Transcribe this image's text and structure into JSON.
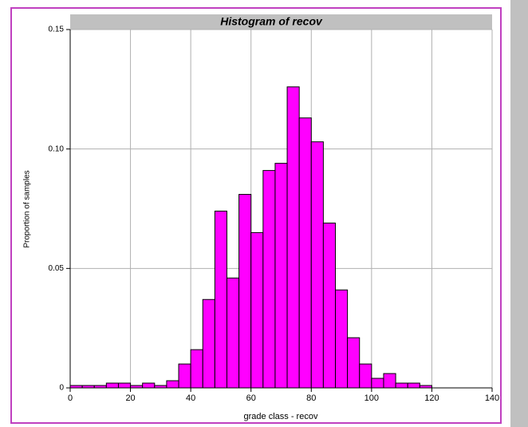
{
  "chart_data": {
    "type": "histogram",
    "title": "Histogram of recov",
    "xlabel": "grade class - recov",
    "ylabel": "Proportion of samples",
    "bins": [
      0,
      4,
      8,
      12,
      16,
      20,
      24,
      28,
      32,
      36,
      40,
      44,
      48,
      52,
      56,
      60,
      64,
      68,
      72,
      76,
      80,
      84,
      88,
      92,
      96,
      100,
      104,
      108,
      112,
      116,
      120
    ],
    "counts": [
      0.001,
      0.001,
      0.001,
      0.002,
      0.002,
      0.001,
      0.002,
      0.001,
      0.003,
      0.01,
      0.016,
      0.037,
      0.074,
      0.046,
      0.081,
      0.065,
      0.091,
      0.094,
      0.126,
      0.113,
      0.103,
      0.069,
      0.041,
      0.021,
      0.01,
      0.004,
      0.006,
      0.002,
      0.002,
      0.001
    ],
    "color": "#ff00ff",
    "xlim": [
      0,
      140
    ],
    "xticks": [
      0,
      20,
      40,
      60,
      80,
      100,
      120,
      140
    ],
    "ylim": [
      0,
      0.15
    ],
    "yticks": [
      0,
      0.05,
      {
        "value": 0.1,
        "label": "0.10"
      },
      0.15
    ],
    "grid": true
  }
}
